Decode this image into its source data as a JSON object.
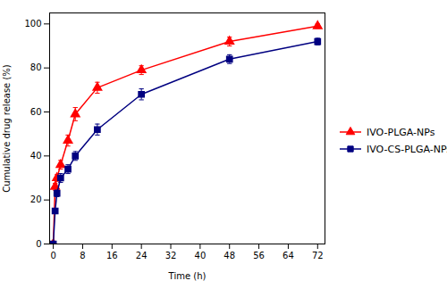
{
  "chart_data": {
    "type": "line",
    "xlabel": "Time (h)",
    "ylabel": "Cumulative drug release (%)",
    "xlim": [
      -1,
      74
    ],
    "ylim": [
      0,
      105
    ],
    "xticks": [
      0,
      8,
      16,
      24,
      32,
      40,
      48,
      56,
      64,
      72
    ],
    "yticks": [
      0,
      20,
      40,
      60,
      80,
      100
    ],
    "grid": false,
    "legend": "right",
    "series": [
      {
        "name": "IVO-PLGA-NPs",
        "color": "#FF0000",
        "marker": "triangle",
        "x": [
          0,
          0.5,
          1,
          2,
          4,
          6,
          12,
          24,
          48,
          72
        ],
        "values": [
          0,
          26,
          30,
          36,
          47,
          59,
          71,
          79,
          92,
          99
        ],
        "yerr": [
          0,
          1.5,
          1.5,
          2.0,
          2.5,
          3.0,
          2.5,
          2.0,
          2.0,
          1.0
        ]
      },
      {
        "name": "IVO-CS-PLGA-NPs",
        "color": "#000080",
        "marker": "square",
        "x": [
          0,
          0.5,
          1,
          2,
          4,
          6,
          12,
          24,
          48,
          72
        ],
        "values": [
          0,
          15,
          23,
          30,
          34,
          40,
          52,
          68,
          84,
          92
        ],
        "yerr": [
          0,
          1.0,
          1.5,
          2.0,
          2.0,
          2.0,
          2.5,
          2.5,
          2.0,
          1.5
        ]
      }
    ]
  }
}
